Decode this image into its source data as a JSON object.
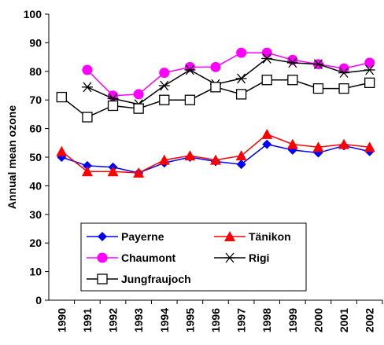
{
  "chart_data": {
    "type": "line",
    "y_label": "Annual mean ozone",
    "categories": [
      "1990",
      "1991",
      "1992",
      "1993",
      "1994",
      "1995",
      "1996",
      "1997",
      "1998",
      "1999",
      "2000",
      "2001",
      "2002"
    ],
    "ylim": [
      0,
      100
    ],
    "yticks": [
      0,
      10,
      20,
      30,
      40,
      50,
      60,
      70,
      80,
      90,
      100
    ],
    "series": [
      {
        "name": "Payerne",
        "color": "#0000ff",
        "marker": "diamond",
        "values": [
          50,
          47,
          46.5,
          44.5,
          48,
          50,
          48.5,
          47.5,
          54.5,
          52.5,
          51.5,
          54,
          52
        ]
      },
      {
        "name": "Tänikon",
        "color": "#ff0000",
        "marker": "triangle",
        "values": [
          52,
          45,
          45,
          44.5,
          49,
          50.5,
          49,
          50.5,
          58,
          54.5,
          53.5,
          54.5,
          53.5
        ]
      },
      {
        "name": "Chaumont",
        "color": "#ff00ff",
        "marker": "circle",
        "values": [
          null,
          80.5,
          71.5,
          72,
          79.5,
          81.5,
          81.5,
          86.5,
          86.5,
          84,
          82.5,
          81,
          83
        ]
      },
      {
        "name": "Rigi",
        "color": "#000000",
        "marker": "star",
        "values": [
          null,
          74.5,
          70.5,
          68.5,
          75,
          80.5,
          75.5,
          77.5,
          84.5,
          83,
          82.5,
          79.5,
          80.5
        ]
      },
      {
        "name": "Jungfraujoch",
        "color": "#000000",
        "marker": "square",
        "values": [
          71,
          64,
          68,
          67,
          70,
          70,
          74.5,
          72,
          77,
          77,
          74,
          74,
          76
        ]
      }
    ]
  }
}
